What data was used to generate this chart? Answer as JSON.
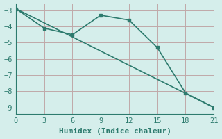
{
  "line1_x": [
    0,
    3,
    6,
    9,
    12,
    15,
    18,
    21
  ],
  "line1_y": [
    -2.9,
    -4.1,
    -4.5,
    -3.3,
    -3.6,
    -5.3,
    -8.1,
    -9.0
  ],
  "line2_x": [
    0,
    21
  ],
  "line2_y": [
    -2.9,
    -9.0
  ],
  "line_color": "#2d7b6e",
  "bg_color": "#d5eeeb",
  "grid_color": "#c0a8a8",
  "xlabel": "Humidex (Indice chaleur)",
  "xticks": [
    0,
    3,
    6,
    9,
    12,
    15,
    18,
    21
  ],
  "yticks": [
    -3,
    -4,
    -5,
    -6,
    -7,
    -8,
    -9
  ],
  "xlim": [
    0,
    21
  ],
  "ylim": [
    -9.4,
    -2.6
  ],
  "xlabel_fontsize": 8,
  "tick_fontsize": 7.5,
  "linewidth": 1.2,
  "marker": "s",
  "markersize": 3.5
}
